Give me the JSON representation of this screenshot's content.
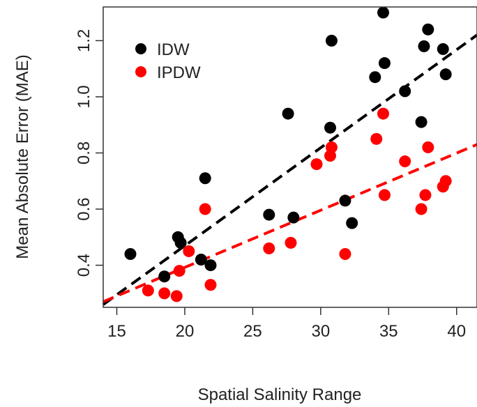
{
  "chart_data": {
    "type": "scatter",
    "xlabel": "Spatial Salinity Range",
    "ylabel": "Mean Absolute Error (MAE)",
    "xlim": [
      14.0,
      41.5
    ],
    "ylim": [
      0.25,
      1.32
    ],
    "x_ticks": [
      15,
      20,
      25,
      30,
      35,
      40
    ],
    "y_ticks": [
      0.4,
      0.6,
      0.8,
      1.0,
      1.2
    ],
    "x_tick_labels": [
      "15",
      "20",
      "25",
      "30",
      "35",
      "40"
    ],
    "y_tick_labels": [
      "0.4",
      "0.6",
      "0.8",
      "1.0",
      "1.2"
    ],
    "legend": {
      "position": "top-left",
      "entries": [
        "IDW",
        "IPDW"
      ]
    },
    "grid": false,
    "series": [
      {
        "name": "IDW",
        "color": "#000000",
        "points": [
          {
            "x": 16.0,
            "y": 0.44
          },
          {
            "x": 18.5,
            "y": 0.36
          },
          {
            "x": 19.5,
            "y": 0.5
          },
          {
            "x": 19.7,
            "y": 0.48
          },
          {
            "x": 21.2,
            "y": 0.42
          },
          {
            "x": 21.5,
            "y": 0.71
          },
          {
            "x": 21.9,
            "y": 0.4
          },
          {
            "x": 26.2,
            "y": 0.58
          },
          {
            "x": 27.6,
            "y": 0.94
          },
          {
            "x": 28.0,
            "y": 0.57
          },
          {
            "x": 30.7,
            "y": 0.89
          },
          {
            "x": 30.8,
            "y": 1.2
          },
          {
            "x": 31.8,
            "y": 0.63
          },
          {
            "x": 32.3,
            "y": 0.55
          },
          {
            "x": 34.0,
            "y": 1.07
          },
          {
            "x": 34.6,
            "y": 1.3
          },
          {
            "x": 34.7,
            "y": 1.12
          },
          {
            "x": 36.2,
            "y": 1.02
          },
          {
            "x": 37.4,
            "y": 0.91
          },
          {
            "x": 37.6,
            "y": 1.18
          },
          {
            "x": 37.9,
            "y": 1.24
          },
          {
            "x": 39.0,
            "y": 1.17
          },
          {
            "x": 39.2,
            "y": 1.08
          }
        ],
        "trend": {
          "x": [
            14.0,
            41.5
          ],
          "y": [
            0.26,
            1.22
          ]
        }
      },
      {
        "name": "IPDW",
        "color": "#ff0000",
        "points": [
          {
            "x": 17.3,
            "y": 0.31
          },
          {
            "x": 18.5,
            "y": 0.3
          },
          {
            "x": 19.4,
            "y": 0.29
          },
          {
            "x": 19.6,
            "y": 0.38
          },
          {
            "x": 20.3,
            "y": 0.45
          },
          {
            "x": 21.5,
            "y": 0.6
          },
          {
            "x": 21.9,
            "y": 0.33
          },
          {
            "x": 26.2,
            "y": 0.46
          },
          {
            "x": 27.8,
            "y": 0.48
          },
          {
            "x": 29.7,
            "y": 0.76
          },
          {
            "x": 30.7,
            "y": 0.79
          },
          {
            "x": 30.8,
            "y": 0.82
          },
          {
            "x": 31.8,
            "y": 0.44
          },
          {
            "x": 34.1,
            "y": 0.85
          },
          {
            "x": 34.6,
            "y": 0.94
          },
          {
            "x": 34.7,
            "y": 0.65
          },
          {
            "x": 36.2,
            "y": 0.77
          },
          {
            "x": 37.4,
            "y": 0.6
          },
          {
            "x": 37.7,
            "y": 0.65
          },
          {
            "x": 37.9,
            "y": 0.82
          },
          {
            "x": 39.0,
            "y": 0.68
          },
          {
            "x": 39.2,
            "y": 0.7
          }
        ],
        "trend": {
          "x": [
            14.0,
            41.5
          ],
          "y": [
            0.27,
            0.83
          ]
        }
      }
    ]
  }
}
